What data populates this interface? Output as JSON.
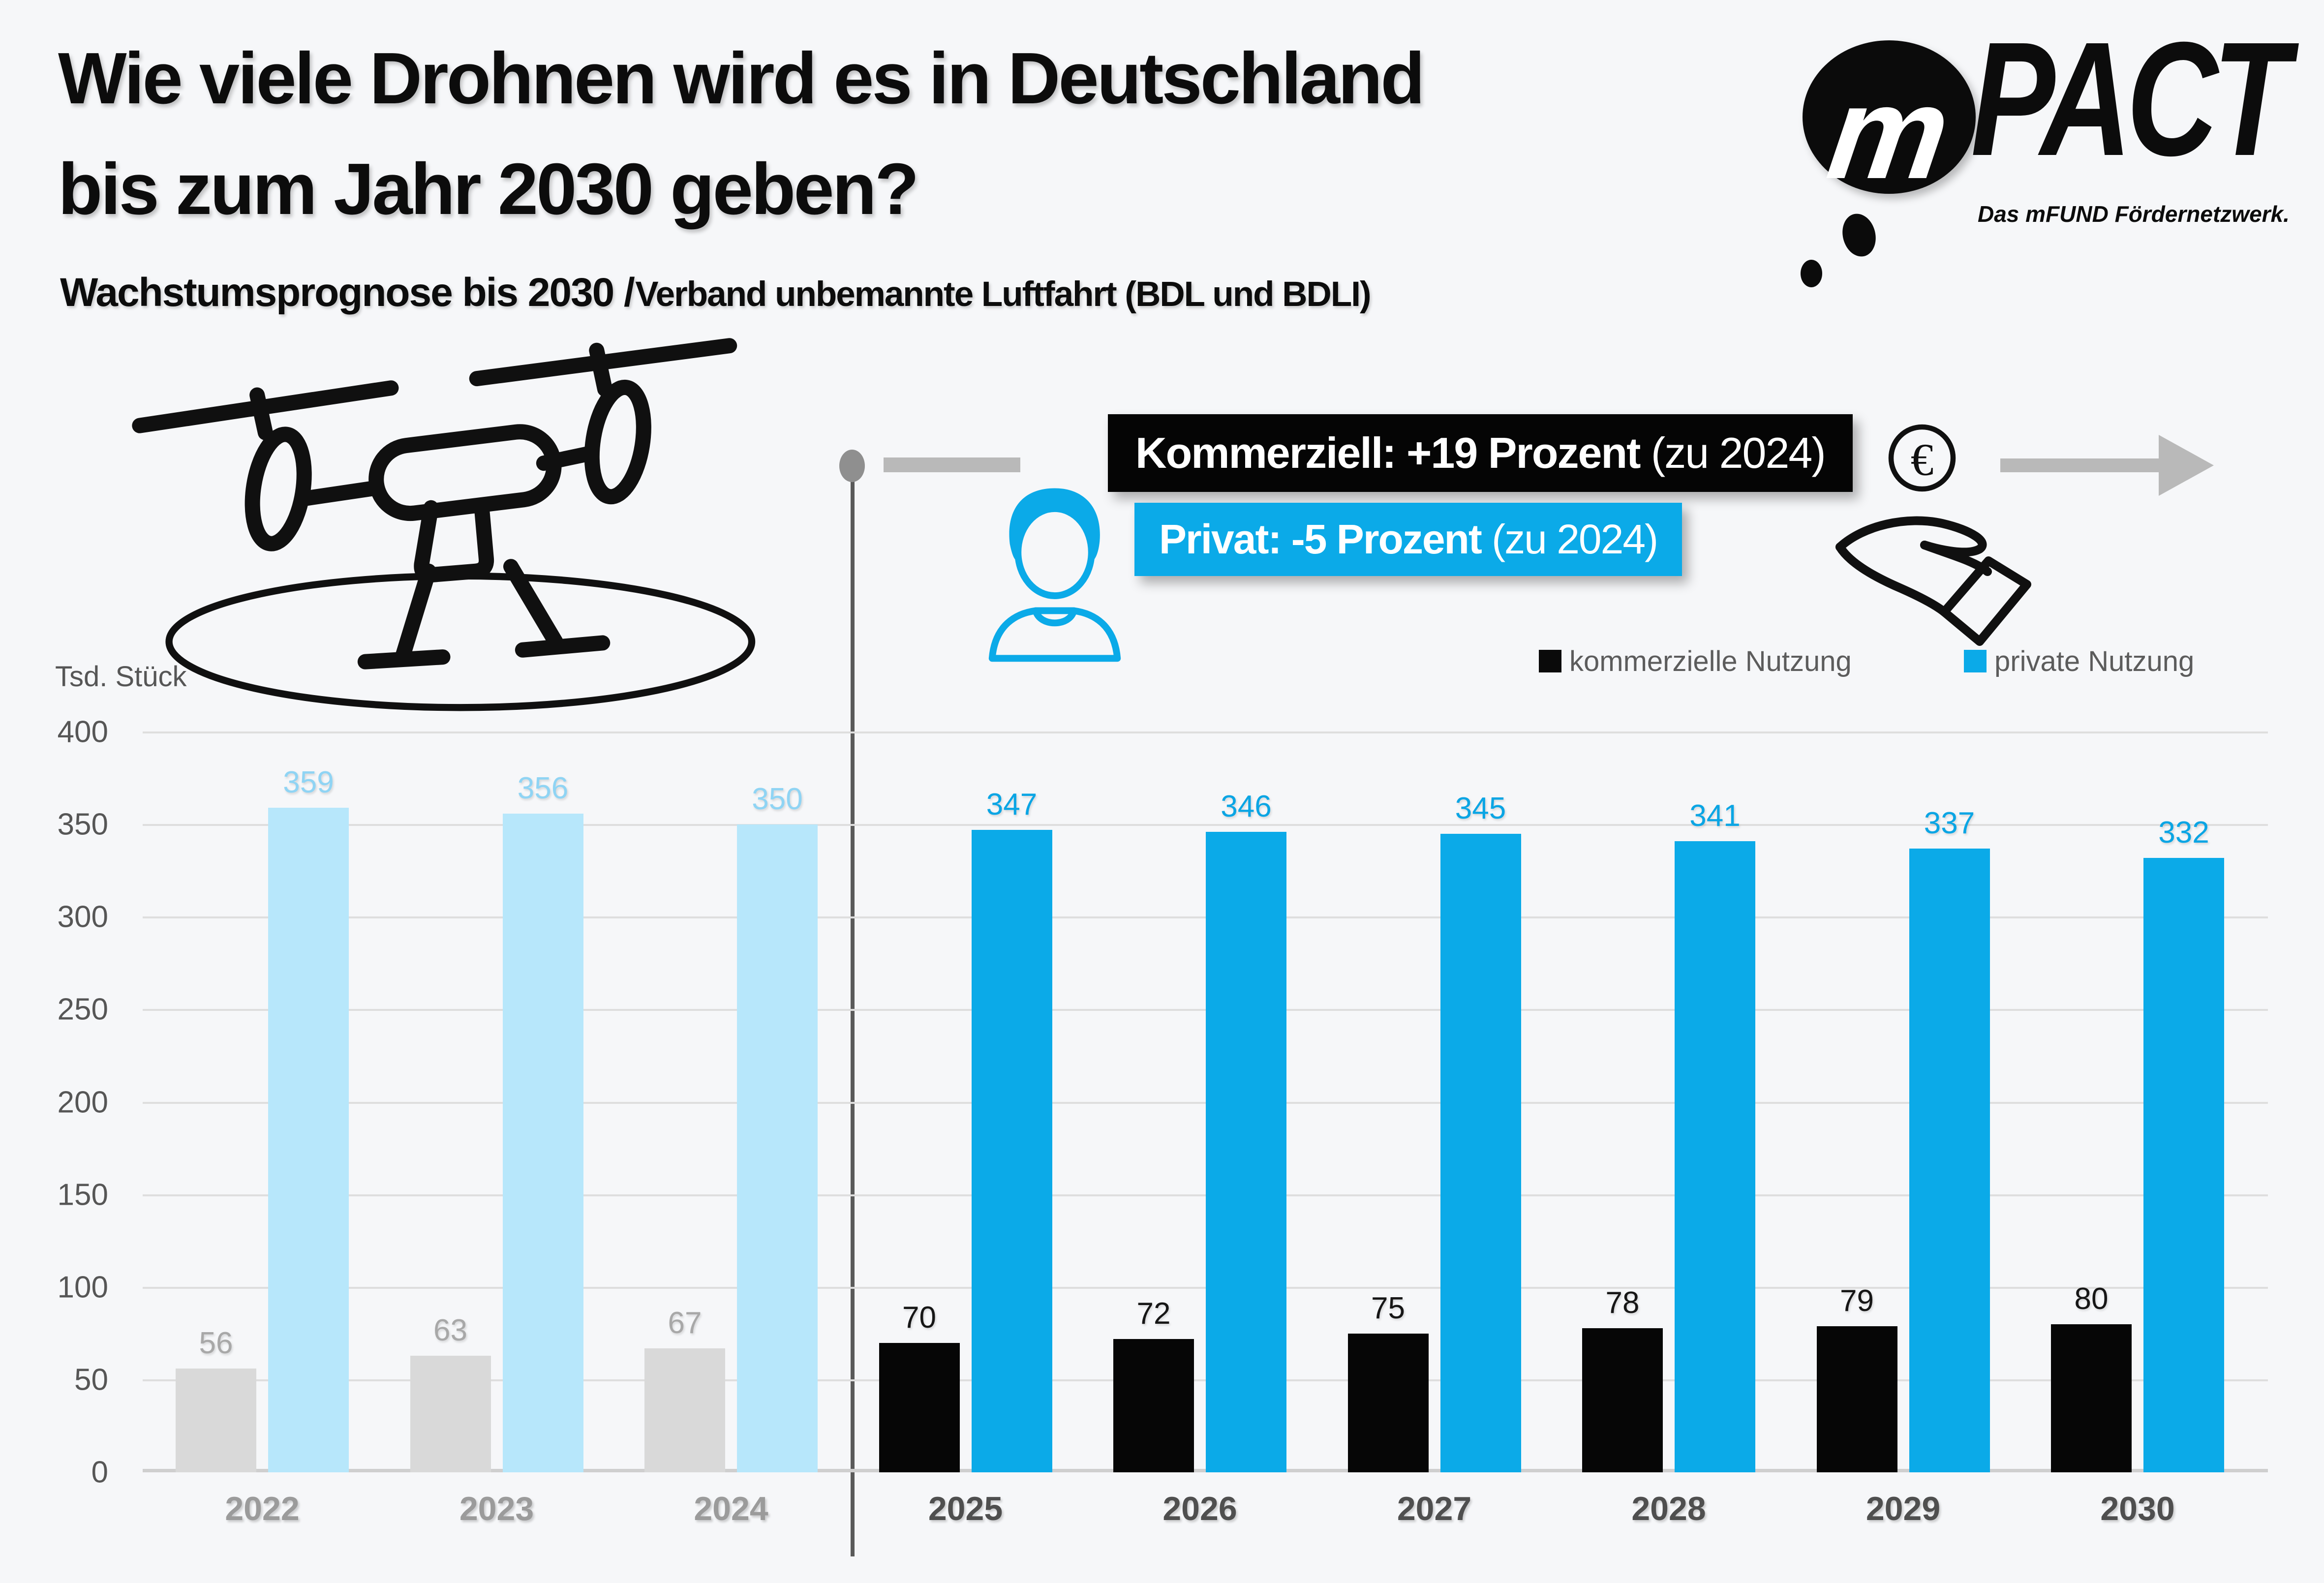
{
  "title": {
    "line1": "Wie viele Drohnen wird es in Deutschland",
    "line2": "bis zum Jahr 2030 geben?"
  },
  "subtitle": {
    "part1": "Wachstumsprognose bis 2030 /",
    "part2": " Verband unbemannte Luftfahrt (BDL und BDLI)"
  },
  "logo": {
    "bubble_letter": "m",
    "wordmark": "PACT",
    "tagline": "Das mFUND Fördernetzwerk."
  },
  "callouts": {
    "commercial": {
      "text_bold": "Kommerziell: +19 Prozent ",
      "text_light": "(zu 2024)"
    },
    "private": {
      "text_bold": "Privat: -5 Prozent ",
      "text_light": "(zu 2024)"
    }
  },
  "legend": {
    "commercial": "kommerzielle Nutzung",
    "private": "private Nutzung"
  },
  "axis_unit": "Tsd. Stück",
  "colors": {
    "accent_blue": "#0baae8",
    "light_blue": "#b7e7fb",
    "historical_gray": "#d9d9d9",
    "bar_black": "#060606",
    "background": "#f6f7f9"
  },
  "chart_data": {
    "type": "bar",
    "title": "Wie viele Drohnen wird es in Deutschland bis zum Jahr 2030 geben?",
    "subtitle": "Wachstumsprognose bis 2030 / Verband unbemannte Luftfahrt (BDL und BDLI)",
    "categories": [
      "2022",
      "2023",
      "2024",
      "2025",
      "2026",
      "2027",
      "2028",
      "2029",
      "2030"
    ],
    "series": [
      {
        "name": "kommerzielle Nutzung",
        "values": [
          56,
          63,
          67,
          70,
          72,
          75,
          78,
          79,
          80
        ]
      },
      {
        "name": "private Nutzung",
        "values": [
          359,
          356,
          350,
          347,
          346,
          345,
          341,
          337,
          332
        ]
      }
    ],
    "ylabel": "Tsd. Stück",
    "xlabel": "",
    "ylim": [
      0,
      400
    ],
    "ytick_step": 50,
    "grid": true,
    "legend_position": "top-right",
    "historical_categories": [
      "2022",
      "2023",
      "2024"
    ],
    "annotations": [
      "Kommerziell: +19 Prozent (zu 2024)",
      "Privat: -5 Prozent (zu 2024)"
    ]
  }
}
